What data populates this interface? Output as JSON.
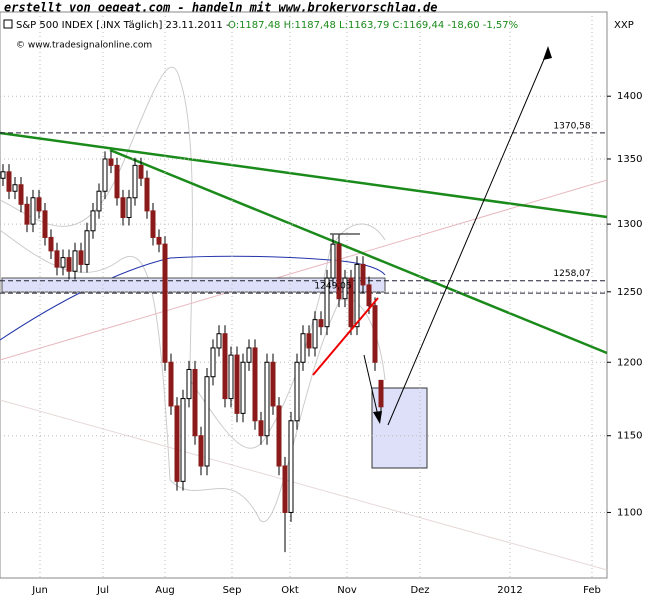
{
  "header": "erstellt von oegeat.com - handeln mit www.brokervorschlag.de",
  "copyright": "© www.tradesignalonline.com",
  "chart_data": {
    "type": "candlestick",
    "title": "S&P 500 INDEX [.INX Täglich] 23.11.2011 -",
    "subtitle": "O:1187,48 H:1187,48 L:1163,79 C:1169,44 -18,60 -1,57%",
    "axis_label": "XXP",
    "log_scale": true,
    "ylim": [
      1059,
      1470
    ],
    "yticks": [
      1100,
      1150,
      1200,
      1250,
      1300,
      1350,
      1400
    ],
    "xticks": [
      "Jun",
      "Jul",
      "Aug",
      "Sep",
      "Okt",
      "Nov",
      "Dez",
      "2012",
      "Feb"
    ],
    "up_color": "#ffffff",
    "down_color": "#8b1a1a",
    "annotations": [
      {
        "value": 1370.58,
        "label": "1370,58"
      },
      {
        "value": 1258.07,
        "label": "1258,07"
      },
      {
        "value": 1249.05,
        "label": "1249,05"
      }
    ],
    "categories": [
      null,
      null,
      null,
      null,
      null,
      null,
      null,
      null,
      null,
      null,
      null,
      null,
      null,
      null,
      null,
      null,
      null,
      null,
      null,
      null,
      null,
      null,
      null,
      null,
      null,
      null,
      null,
      null,
      null,
      null,
      null,
      null,
      null,
      null,
      null,
      null,
      null,
      null,
      null,
      null,
      null,
      null,
      null,
      null,
      null,
      null,
      null,
      null,
      null,
      null,
      null,
      null,
      null,
      null,
      null,
      null,
      null,
      null,
      null,
      null,
      null,
      null,
      null,
      null
    ],
    "open": [
      1335,
      1340,
      1325,
      1330,
      1315,
      1300,
      1320,
      1310,
      1290,
      1280,
      1268,
      1275,
      1265,
      1280,
      1270,
      1295,
      1310,
      1325,
      1350,
      1345,
      1320,
      1305,
      1320,
      1345,
      1335,
      1310,
      1290,
      1285,
      1200,
      1170,
      1120,
      1175,
      1195,
      1150,
      1130,
      1190,
      1210,
      1220,
      1175,
      1205,
      1165,
      1200,
      1210,
      1160,
      1150,
      1200,
      1170,
      1130,
      1100,
      1160,
      1200,
      1220,
      1210,
      1230,
      1225,
      1260,
      1285,
      1245,
      1260,
      1225,
      1270,
      1255,
      1240,
      1187.48
    ],
    "high": [
      1346,
      1346,
      1336,
      1336,
      1321,
      1326,
      1326,
      1316,
      1296,
      1286,
      1281,
      1281,
      1286,
      1286,
      1301,
      1316,
      1331,
      1356,
      1356,
      1351,
      1326,
      1326,
      1351,
      1351,
      1341,
      1316,
      1296,
      1291,
      1206,
      1176,
      1181,
      1201,
      1201,
      1156,
      1196,
      1216,
      1226,
      1226,
      1211,
      1211,
      1206,
      1216,
      1216,
      1166,
      1206,
      1206,
      1176,
      1136,
      1166,
      1206,
      1226,
      1226,
      1236,
      1236,
      1266,
      1292,
      1292,
      1266,
      1266,
      1276,
      1276,
      1261,
      1246,
      1187.48
    ],
    "low": [
      1329,
      1319,
      1319,
      1309,
      1294,
      1294,
      1304,
      1284,
      1274,
      1262,
      1262,
      1259,
      1259,
      1264,
      1264,
      1289,
      1304,
      1319,
      1339,
      1314,
      1299,
      1299,
      1314,
      1329,
      1304,
      1284,
      1279,
      1194,
      1164,
      1114,
      1114,
      1169,
      1144,
      1124,
      1124,
      1184,
      1204,
      1169,
      1169,
      1159,
      1159,
      1194,
      1154,
      1144,
      1144,
      1164,
      1124,
      1075,
      1094,
      1154,
      1194,
      1204,
      1204,
      1219,
      1219,
      1254,
      1239,
      1239,
      1219,
      1219,
      1249,
      1234,
      1194,
      1163.79
    ],
    "close": [
      1340,
      1325,
      1330,
      1315,
      1300,
      1320,
      1310,
      1290,
      1280,
      1268,
      1275,
      1265,
      1280,
      1270,
      1295,
      1310,
      1325,
      1350,
      1345,
      1320,
      1305,
      1320,
      1345,
      1335,
      1310,
      1290,
      1285,
      1200,
      1170,
      1120,
      1175,
      1195,
      1150,
      1130,
      1190,
      1210,
      1220,
      1175,
      1205,
      1165,
      1200,
      1210,
      1160,
      1150,
      1200,
      1170,
      1130,
      1100,
      1160,
      1200,
      1220,
      1210,
      1230,
      1225,
      1260,
      1285,
      1245,
      1260,
      1225,
      1270,
      1255,
      1240,
      1200,
      1169.44
    ]
  }
}
